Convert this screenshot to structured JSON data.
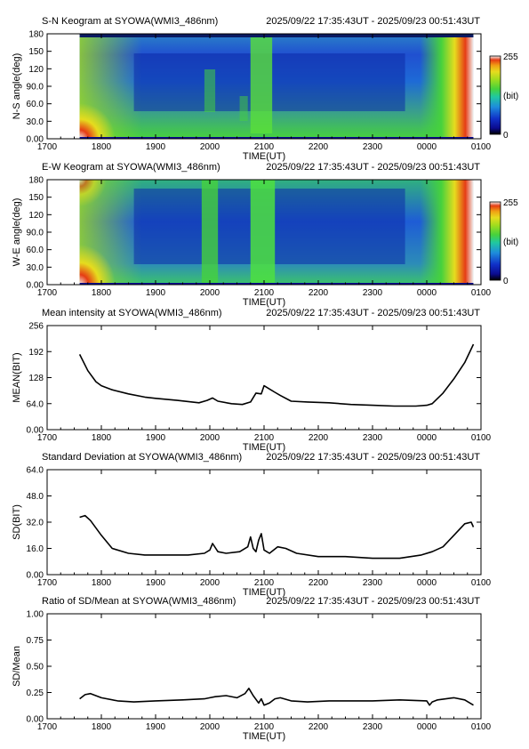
{
  "chart_data": [
    {
      "type": "heatmap",
      "title": "S-N Keogram at SYOWA(WMI3_486nm)",
      "time_range": "2025/09/22 17:35:43UT - 2025/09/23 00:51:43UT",
      "xlabel": "TIME(UT)",
      "ylabel": "N-S angle(deg)",
      "xticks": [
        "1700",
        "1800",
        "1900",
        "2000",
        "2100",
        "2200",
        "2300",
        "0000",
        "0100"
      ],
      "yticks": [
        "0.00",
        "30.0",
        "60.0",
        "90.0",
        "120",
        "150",
        "180"
      ],
      "ylim": [
        0,
        180
      ],
      "data_start_hour": 17.6,
      "data_end_hour": 24.86,
      "colorbar": {
        "min_label": "0",
        "max_label": "255",
        "unit": "(bit)"
      },
      "colormap": [
        "#000000",
        "#0b0b8f",
        "#1030c8",
        "#1e8cdc",
        "#20c8a0",
        "#46d23c",
        "#a0dc1e",
        "#e6dc1e",
        "#f0a014",
        "#e63c14",
        "#f0f0f0"
      ],
      "features": "bright emission bands near 20:00 and 21:00 UT; high edge intensity at start and end (twilight)"
    },
    {
      "type": "heatmap",
      "title": "E-W Keogram at SYOWA(WMI3_486nm)",
      "time_range": "2025/09/22 17:35:43UT - 2025/09/23 00:51:43UT",
      "xlabel": "TIME(UT)",
      "ylabel": "W-E angle(deg)",
      "xticks": [
        "1700",
        "1800",
        "1900",
        "2000",
        "2100",
        "2200",
        "2300",
        "0000",
        "0100"
      ],
      "yticks": [
        "0.00",
        "30.0",
        "60.0",
        "90.0",
        "120",
        "150",
        "180"
      ],
      "ylim": [
        0,
        180
      ],
      "data_start_hour": 17.6,
      "data_end_hour": 24.86,
      "colorbar": {
        "min_label": "0",
        "max_label": "255",
        "unit": "(bit)"
      },
      "features": "broad vertical bright bands near 20:00 and 21:00 UT; twilight brightening at both ends"
    },
    {
      "type": "line",
      "title": "Mean intensity at SYOWA(WMI3_486nm)",
      "time_range": "2025/09/22 17:35:43UT - 2025/09/23 00:51:43UT",
      "xlabel": "TIME(UT)",
      "ylabel": "MEAN(BIT)",
      "xticks": [
        "1700",
        "1800",
        "1900",
        "2000",
        "2100",
        "2200",
        "2300",
        "0000",
        "0100"
      ],
      "yticks": [
        "0.00",
        "64.0",
        "128",
        "192",
        "256"
      ],
      "ylim": [
        0,
        256
      ],
      "x_hours": [
        17.6,
        17.75,
        17.9,
        18.0,
        18.2,
        18.5,
        18.8,
        19.0,
        19.4,
        19.8,
        19.95,
        20.05,
        20.15,
        20.4,
        20.6,
        20.75,
        20.85,
        20.95,
        21.0,
        21.1,
        21.2,
        21.3,
        21.5,
        21.8,
        22.2,
        22.6,
        23.0,
        23.4,
        23.8,
        24.0,
        24.1,
        24.3,
        24.5,
        24.7,
        24.86
      ],
      "values": [
        185,
        145,
        118,
        108,
        98,
        88,
        80,
        77,
        72,
        66,
        72,
        78,
        70,
        64,
        62,
        68,
        90,
        88,
        108,
        100,
        92,
        84,
        70,
        68,
        66,
        62,
        60,
        58,
        58,
        60,
        64,
        90,
        125,
        165,
        210
      ]
    },
    {
      "type": "line",
      "title": "Standard Deviation at SYOWA(WMI3_486nm)",
      "time_range": "2025/09/22 17:35:43UT - 2025/09/23 00:51:43UT",
      "xlabel": "TIME(UT)",
      "ylabel": "SD(BIT)",
      "xticks": [
        "1700",
        "1800",
        "1900",
        "2000",
        "2100",
        "2200",
        "2300",
        "0000",
        "0100"
      ],
      "yticks": [
        "0.00",
        "16.0",
        "32.0",
        "48.0",
        "64.0"
      ],
      "ylim": [
        0,
        64
      ],
      "x_hours": [
        17.6,
        17.7,
        17.8,
        18.0,
        18.2,
        18.5,
        18.8,
        19.2,
        19.6,
        19.9,
        20.0,
        20.05,
        20.15,
        20.3,
        20.55,
        20.7,
        20.75,
        20.8,
        20.85,
        20.9,
        20.95,
        21.0,
        21.05,
        21.1,
        21.25,
        21.4,
        21.6,
        22.0,
        22.5,
        23.0,
        23.5,
        23.9,
        24.1,
        24.3,
        24.5,
        24.7,
        24.82,
        24.86
      ],
      "values": [
        35,
        36,
        33,
        24,
        16,
        13,
        12,
        12,
        12,
        13,
        15,
        19,
        14,
        13,
        14,
        17,
        23,
        16,
        14,
        21,
        25,
        15,
        14,
        13,
        17,
        16,
        13,
        11,
        11,
        10,
        10,
        12,
        14,
        17,
        24,
        31,
        32,
        29
      ]
    },
    {
      "type": "line",
      "title": "Ratio of SD/Mean at SYOWA(WMI3_486nm)",
      "time_range": "2025/09/22 17:35:43UT - 2025/09/23 00:51:43UT",
      "xlabel": "TIME(UT)",
      "ylabel": "SD/Mean",
      "xticks": [
        "1700",
        "1800",
        "1900",
        "2000",
        "2100",
        "2200",
        "2300",
        "0000",
        "0100"
      ],
      "yticks": [
        "0.00",
        "0.25",
        "0.50",
        "0.75",
        "1.00"
      ],
      "ylim": [
        0,
        1.0
      ],
      "x_hours": [
        17.6,
        17.7,
        17.8,
        18.0,
        18.3,
        18.6,
        19.0,
        19.5,
        19.9,
        20.0,
        20.1,
        20.3,
        20.5,
        20.65,
        20.72,
        20.8,
        20.9,
        20.95,
        21.0,
        21.1,
        21.2,
        21.3,
        21.5,
        21.8,
        22.2,
        22.6,
        23.0,
        23.5,
        24.0,
        24.05,
        24.1,
        24.2,
        24.5,
        24.7,
        24.86
      ],
      "values": [
        0.19,
        0.23,
        0.24,
        0.2,
        0.17,
        0.16,
        0.17,
        0.18,
        0.19,
        0.2,
        0.21,
        0.22,
        0.2,
        0.24,
        0.29,
        0.22,
        0.15,
        0.19,
        0.13,
        0.15,
        0.19,
        0.2,
        0.17,
        0.16,
        0.17,
        0.17,
        0.17,
        0.18,
        0.17,
        0.13,
        0.16,
        0.18,
        0.2,
        0.18,
        0.13
      ]
    }
  ]
}
